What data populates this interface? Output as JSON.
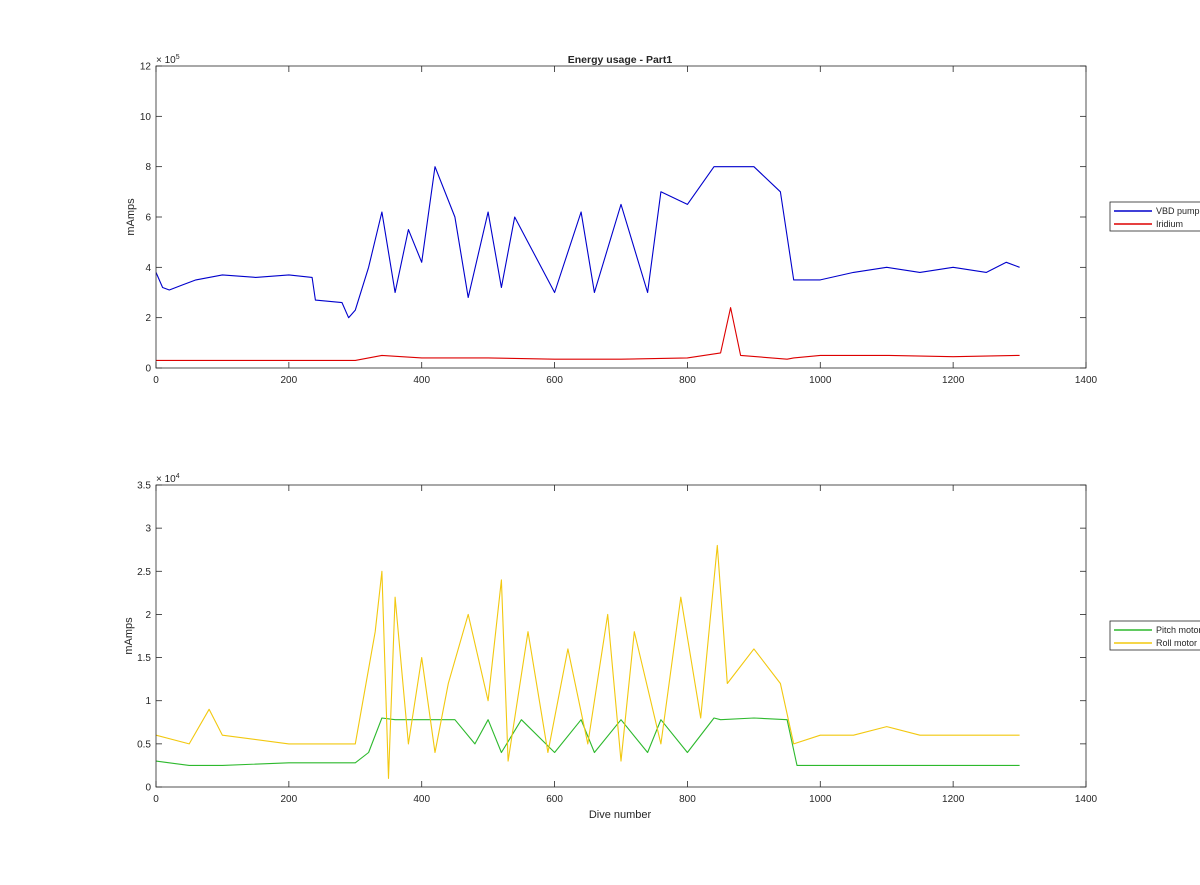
{
  "figure_title": "Energy usage - Part1",
  "chart_data": [
    {
      "type": "line",
      "title": "Energy usage - Part1",
      "xlabel": "",
      "ylabel": "mAmps",
      "xlim": [
        0,
        1400
      ],
      "ylim": [
        0,
        1200000
      ],
      "xticks": [
        0,
        200,
        400,
        600,
        800,
        1000,
        1200,
        1400
      ],
      "xtick_labels": [
        "0",
        "200",
        "400",
        "600",
        "800",
        "1000",
        "1200",
        "1400"
      ],
      "yticks": [
        0,
        200000,
        400000,
        600000,
        800000,
        1000000,
        1200000
      ],
      "ytick_labels": [
        "0",
        "2",
        "4",
        "6",
        "8",
        "10",
        "12"
      ],
      "y_exponent_label": "× 10",
      "y_exponent_power": "5",
      "grid": false,
      "legend_position": "outside-right",
      "series": [
        {
          "name": "VBD pump",
          "color": "#0000cc",
          "x": [
            0,
            10,
            20,
            40,
            60,
            100,
            150,
            200,
            235,
            240,
            280,
            290,
            300,
            320,
            340,
            360,
            380,
            400,
            420,
            450,
            470,
            500,
            520,
            540,
            560,
            600,
            640,
            660,
            700,
            740,
            760,
            800,
            840,
            860,
            900,
            940,
            960,
            980,
            1000,
            1050,
            1100,
            1150,
            1200,
            1250,
            1280,
            1300
          ],
          "y": [
            380000,
            320000,
            310000,
            330000,
            350000,
            370000,
            360000,
            370000,
            360000,
            270000,
            260000,
            200000,
            230000,
            400000,
            620000,
            300000,
            550000,
            420000,
            800000,
            600000,
            280000,
            620000,
            320000,
            600000,
            500000,
            300000,
            620000,
            300000,
            650000,
            300000,
            700000,
            650000,
            800000,
            800000,
            800000,
            700000,
            350000,
            350000,
            350000,
            380000,
            400000,
            380000,
            400000,
            380000,
            420000,
            400000
          ]
        },
        {
          "name": "Iridium",
          "color": "#dd0000",
          "x": [
            0,
            100,
            200,
            300,
            340,
            400,
            500,
            600,
            700,
            800,
            850,
            865,
            880,
            950,
            960,
            1000,
            1100,
            1200,
            1300
          ],
          "y": [
            30000,
            30000,
            30000,
            30000,
            50000,
            40000,
            40000,
            35000,
            35000,
            40000,
            60000,
            240000,
            50000,
            35000,
            40000,
            50000,
            50000,
            45000,
            50000
          ]
        }
      ]
    },
    {
      "type": "line",
      "title": "",
      "xlabel": "Dive number",
      "ylabel": "mAmps",
      "xlim": [
        0,
        1400
      ],
      "ylim": [
        0,
        35000
      ],
      "xticks": [
        0,
        200,
        400,
        600,
        800,
        1000,
        1200,
        1400
      ],
      "xtick_labels": [
        "0",
        "200",
        "400",
        "600",
        "800",
        "1000",
        "1200",
        "1400"
      ],
      "yticks": [
        0,
        5000,
        10000,
        15000,
        20000,
        25000,
        30000,
        35000
      ],
      "ytick_labels": [
        "0",
        "0.5",
        "1",
        "1.5",
        "2",
        "2.5",
        "3",
        "3.5"
      ],
      "y_exponent_label": "× 10",
      "y_exponent_power": "4",
      "grid": false,
      "legend_position": "outside-right",
      "series": [
        {
          "name": "Pitch motor",
          "color": "#2db92d",
          "x": [
            0,
            50,
            100,
            200,
            300,
            320,
            340,
            360,
            400,
            450,
            480,
            500,
            520,
            550,
            600,
            640,
            660,
            700,
            740,
            760,
            800,
            840,
            850,
            900,
            950,
            965,
            1000,
            1100,
            1200,
            1300
          ],
          "y": [
            3000,
            2500,
            2500,
            2800,
            2800,
            4000,
            8000,
            7800,
            7800,
            7800,
            5000,
            7800,
            4000,
            7800,
            4000,
            7800,
            4000,
            7800,
            4000,
            7800,
            4000,
            8000,
            7800,
            8000,
            7800,
            2500,
            2500,
            2500,
            2500,
            2500
          ]
        },
        {
          "name": "Roll motor",
          "color": "#f2c80f",
          "x": [
            0,
            50,
            80,
            100,
            200,
            300,
            330,
            340,
            350,
            360,
            380,
            400,
            420,
            440,
            470,
            500,
            520,
            530,
            560,
            590,
            620,
            650,
            680,
            700,
            720,
            760,
            790,
            820,
            845,
            860,
            900,
            940,
            960,
            1000,
            1050,
            1100,
            1150,
            1200,
            1250,
            1300
          ],
          "y": [
            6000,
            5000,
            9000,
            6000,
            5000,
            5000,
            18000,
            25000,
            1000,
            22000,
            5000,
            15000,
            4000,
            12000,
            20000,
            10000,
            24000,
            3000,
            18000,
            4000,
            16000,
            5000,
            20000,
            3000,
            18000,
            5000,
            22000,
            8000,
            28000,
            12000,
            16000,
            12000,
            5000,
            6000,
            6000,
            7000,
            6000,
            6000,
            6000,
            6000
          ]
        }
      ]
    }
  ]
}
